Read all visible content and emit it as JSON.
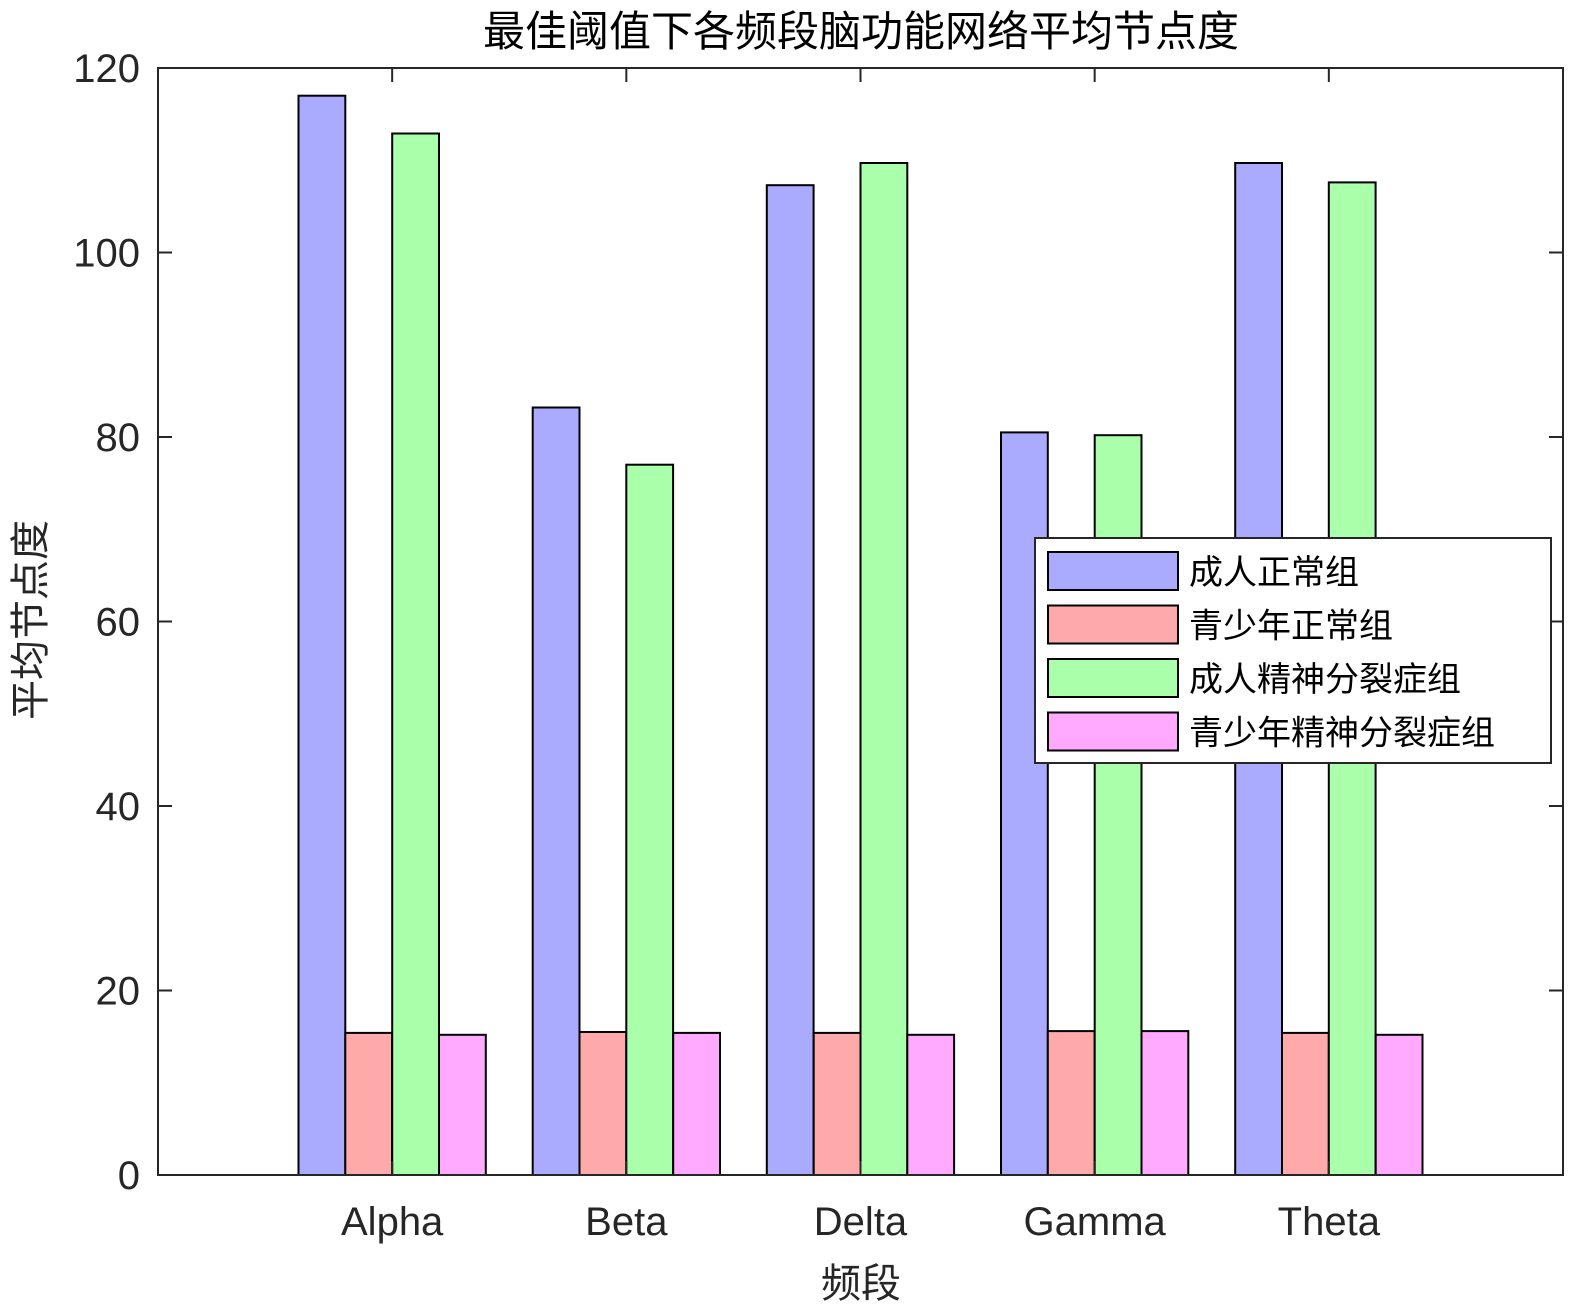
{
  "chart_data": {
    "type": "bar",
    "title": "最佳阈值下各频段脑功能网络平均节点度",
    "xlabel": "频段",
    "ylabel": "平均节点度",
    "categories": [
      "Alpha",
      "Beta",
      "Delta",
      "Gamma",
      "Theta"
    ],
    "ylim": [
      0,
      120
    ],
    "yticks": [
      0,
      20,
      40,
      60,
      80,
      100,
      120
    ],
    "legend_position": "right",
    "grid": false,
    "series": [
      {
        "name": "成人正常组",
        "color": "#aaaaff",
        "values": [
          117.0,
          83.2,
          107.3,
          80.5,
          109.7
        ]
      },
      {
        "name": "青少年正常组",
        "color": "#ffaaaa",
        "values": [
          15.4,
          15.5,
          15.4,
          15.6,
          15.4
        ]
      },
      {
        "name": "成人精神分裂症组",
        "color": "#aaffaa",
        "values": [
          112.9,
          77.0,
          109.7,
          80.2,
          107.6
        ]
      },
      {
        "name": "青少年精神分裂症组",
        "color": "#ffaaff",
        "values": [
          15.2,
          15.4,
          15.2,
          15.6,
          15.2
        ]
      }
    ]
  }
}
